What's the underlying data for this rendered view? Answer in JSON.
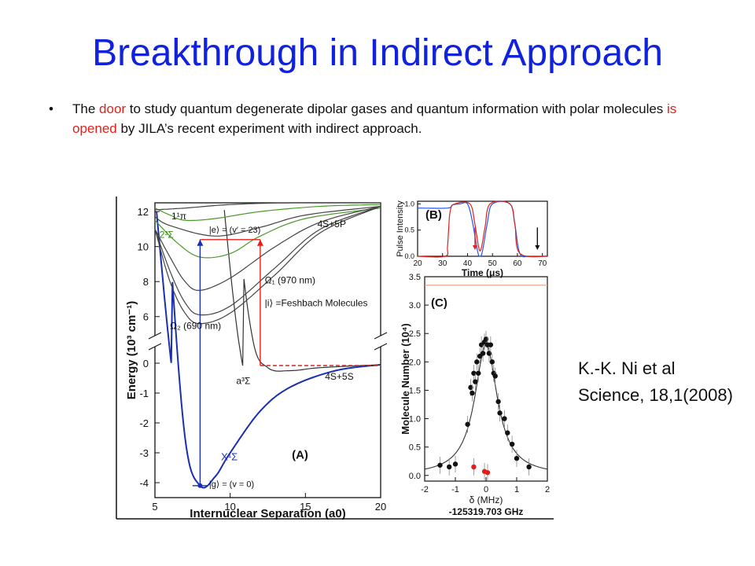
{
  "slide": {
    "title": "Breakthrough in Indirect Approach",
    "bullet": {
      "marker": "•",
      "t1": "The ",
      "h1": "door",
      "t2": " to study quantum degenerate dipolar gases and quantum information with polar molecules ",
      "h2": "is opened",
      "t3": " by JILA’s recent experiment with indirect approach."
    },
    "citation": {
      "line1": "K.-K. Ni et al",
      "line2": "Science, 18,1(2008)"
    },
    "colors": {
      "title": "#1122dd",
      "highlight": "#e0201a"
    }
  },
  "chart_data": [
    {
      "type": "line",
      "panel_label": "(A)",
      "xlabel": "Internuclear Separation (a0)",
      "ylabel": "Energy (10³ cm⁻¹)",
      "xlim": [
        5,
        20
      ],
      "ylim": [
        -4.5,
        12.5
      ],
      "xticks": [
        5,
        10,
        15,
        20
      ],
      "yticks": [
        -4,
        -3,
        -2,
        -1,
        0,
        6,
        8,
        10,
        12
      ],
      "axis_break": "between 0 and 6",
      "annotations": [
        "1¹π",
        "2³Σ",
        "|e⟩ = (v′ = 23)",
        "4S+5P",
        "Ω₁ (970 nm)",
        "|i⟩ =Feshbach Molecules",
        "Ω₂ (690 nm)",
        "a³Σ",
        "4S+5S",
        "X¹Σ",
        "|g⟩ = (v = 0)"
      ],
      "series": [
        {
          "name": "X¹Σ",
          "color": "#1a2fb0",
          "points": [
            [
              5,
              13
            ],
            [
              6,
              4
            ],
            [
              7,
              -2.5
            ],
            [
              8,
              -4.1
            ],
            [
              9,
              -3.8
            ],
            [
              10,
              -3.0
            ],
            [
              12,
              -1.6
            ],
            [
              14,
              -0.8
            ],
            [
              17,
              -0.25
            ],
            [
              20,
              -0.05
            ]
          ]
        },
        {
          "name": "a³Σ",
          "color": "#333333",
          "points": [
            [
              9.5,
              13
            ],
            [
              10.5,
              5
            ],
            [
              11.5,
              0.8
            ],
            [
              12.5,
              -0.15
            ],
            [
              14,
              -0.25
            ],
            [
              16,
              -0.15
            ],
            [
              20,
              -0.05
            ]
          ]
        },
        {
          "name": "2³Σ",
          "color": "#4a9a2a",
          "points": [
            [
              5,
              11.5
            ],
            [
              6.5,
              10.2
            ],
            [
              8,
              9.4
            ],
            [
              10,
              9.6
            ],
            [
              12,
              10.6
            ],
            [
              15,
              11.6
            ],
            [
              20,
              12.2
            ]
          ]
        },
        {
          "name": "1¹π",
          "color": "#4a9a2a",
          "points": [
            [
              5,
              12.2
            ],
            [
              6,
              11.8
            ],
            [
              7,
              11.5
            ],
            [
              9,
              11.6
            ],
            [
              12,
              12.0
            ],
            [
              16,
              12.3
            ],
            [
              20,
              12.4
            ]
          ]
        },
        {
          "name": "",
          "color": "#444444",
          "points": [
            [
              5,
              12.1
            ],
            [
              7,
              12.2
            ],
            [
              10,
              12.4
            ],
            [
              14,
              12.5
            ],
            [
              20,
              12.5
            ]
          ]
        },
        {
          "name": "",
          "color": "#444444",
          "points": [
            [
              5,
              11.7
            ],
            [
              6,
              11.2
            ],
            [
              9,
              10.6
            ],
            [
              12,
              11.1
            ],
            [
              15,
              11.8
            ],
            [
              20,
              12.3
            ]
          ]
        },
        {
          "name": "",
          "color": "#444444",
          "points": [
            [
              5,
              11.0
            ],
            [
              6,
              8.0
            ],
            [
              7,
              6.2
            ],
            [
              8,
              5.6
            ],
            [
              10,
              6.2
            ],
            [
              13,
              8.4
            ],
            [
              16,
              10.8
            ],
            [
              20,
              12.3
            ]
          ]
        },
        {
          "name": "",
          "color": "#444444",
          "points": [
            [
              5,
              11.0
            ],
            [
              6,
              8.6
            ],
            [
              7,
              6.8
            ],
            [
              8,
              6.1
            ],
            [
              10,
              6.6
            ],
            [
              13,
              8.8
            ],
            [
              16,
              11.0
            ],
            [
              20,
              12.3
            ]
          ]
        },
        {
          "name": "",
          "color": "#444444",
          "points": [
            [
              5,
              11.0
            ],
            [
              6,
              9.4
            ],
            [
              7,
              8.0
            ],
            [
              8,
              7.5
            ],
            [
              10,
              8.2
            ],
            [
              13,
              10.0
            ],
            [
              16,
              11.4
            ],
            [
              20,
              12.3
            ]
          ]
        }
      ],
      "levels": [
        {
          "name": "|e⟩ = (v′ = 23)",
          "y": 10.4,
          "x": [
            8,
            12
          ],
          "color": "#e0201a"
        },
        {
          "name": "|i⟩ =Feshbach Molecules",
          "y": -0.08,
          "x": [
            12,
            20
          ],
          "color": "#e0201a"
        },
        {
          "name": "|g⟩ = (v = 0)",
          "y": -4.1,
          "x": [
            7.5,
            8.5
          ],
          "color": "#1a2fb0"
        }
      ],
      "transitions": [
        {
          "name": "Ω₂ (690 nm)",
          "x": 8,
          "from": -4.1,
          "to": 10.4,
          "color": "#1a2fb0"
        },
        {
          "name": "Ω₁ (970 nm)",
          "x": 12,
          "from": -0.08,
          "to": 10.4,
          "color": "#e0201a"
        }
      ]
    },
    {
      "type": "line",
      "panel_label": "(B)",
      "xlabel": "Time (μs)",
      "ylabel": "Pulse Intensity",
      "xlim": [
        20,
        72
      ],
      "ylim": [
        0,
        1.05
      ],
      "xticks": [
        20,
        30,
        40,
        50,
        60,
        70
      ],
      "yticks": [
        0.0,
        0.5,
        1.0
      ],
      "series": [
        {
          "name": "",
          "color": "#2255ee",
          "points": [
            [
              20,
              0.92
            ],
            [
              32,
              0.92
            ],
            [
              34,
              0.98
            ],
            [
              37,
              1.0
            ],
            [
              40,
              1.0
            ],
            [
              42,
              0.65
            ],
            [
              44,
              0.1
            ],
            [
              45,
              0.0
            ],
            [
              46,
              0.1
            ],
            [
              48,
              0.65
            ],
            [
              50,
              1.0
            ],
            [
              57,
              1.0
            ],
            [
              59,
              0.6
            ],
            [
              61,
              0.05
            ],
            [
              65,
              0.0
            ],
            [
              72,
              0.0
            ]
          ]
        },
        {
          "name": "",
          "color": "#e0201a",
          "points": [
            [
              20,
              0.0
            ],
            [
              31,
              0.0
            ],
            [
              32,
              0.2
            ],
            [
              33,
              0.85
            ],
            [
              35,
              1.0
            ],
            [
              41,
              1.0
            ],
            [
              43,
              0.6
            ],
            [
              45,
              0.1
            ],
            [
              47,
              0.55
            ],
            [
              49,
              1.0
            ],
            [
              57,
              1.0
            ],
            [
              59,
              0.6
            ],
            [
              61,
              0.05
            ],
            [
              72,
              0.0
            ]
          ]
        }
      ],
      "markers": [
        {
          "x": 43,
          "color": "#e0201a"
        },
        {
          "x": 68,
          "color": "#111111"
        }
      ]
    },
    {
      "type": "scatter",
      "panel_label": "(C)",
      "xlabel": "δ (MHz)",
      "xlabel2": "-125319.703 GHz",
      "ylabel": "Molecule Number (10⁴)",
      "xlim": [
        -2,
        2
      ],
      "ylim": [
        -0.1,
        3.5
      ],
      "xticks": [
        -2,
        -1,
        0,
        1,
        2
      ],
      "yticks": [
        0.0,
        0.5,
        1.0,
        1.5,
        2.0,
        2.5,
        3.0,
        3.5
      ],
      "reference_line": {
        "y": 3.35,
        "color": "#e8a080"
      },
      "series": [
        {
          "name": "",
          "color": "#111111",
          "points": [
            [
              -1.5,
              0.18
            ],
            [
              -1.2,
              0.15
            ],
            [
              -1.0,
              0.2
            ],
            [
              -0.6,
              0.9
            ],
            [
              -0.5,
              1.55
            ],
            [
              -0.45,
              1.45
            ],
            [
              -0.4,
              1.8
            ],
            [
              -0.35,
              1.65
            ],
            [
              -0.3,
              2.0
            ],
            [
              -0.25,
              1.8
            ],
            [
              -0.2,
              2.1
            ],
            [
              -0.15,
              2.3
            ],
            [
              -0.1,
              2.15
            ],
            [
              -0.05,
              2.35
            ],
            [
              0.0,
              2.4
            ],
            [
              0.05,
              2.3
            ],
            [
              0.1,
              2.15
            ],
            [
              0.15,
              2.3
            ],
            [
              0.2,
              2.0
            ],
            [
              0.25,
              1.8
            ],
            [
              0.3,
              1.75
            ],
            [
              0.4,
              1.3
            ],
            [
              0.45,
              1.1
            ],
            [
              0.6,
              1.0
            ],
            [
              0.7,
              0.75
            ],
            [
              0.85,
              0.55
            ],
            [
              1.0,
              0.3
            ],
            [
              1.4,
              0.15
            ]
          ]
        },
        {
          "name": "",
          "color": "#e0201a",
          "points": [
            [
              -0.4,
              0.15
            ],
            [
              -0.05,
              0.07
            ],
            [
              0.05,
              0.05
            ]
          ]
        }
      ],
      "fit": {
        "type": "lorentzian",
        "amplitude": 2.3,
        "center": 0.0,
        "hwhm": 0.45,
        "color": "#333333"
      }
    }
  ]
}
